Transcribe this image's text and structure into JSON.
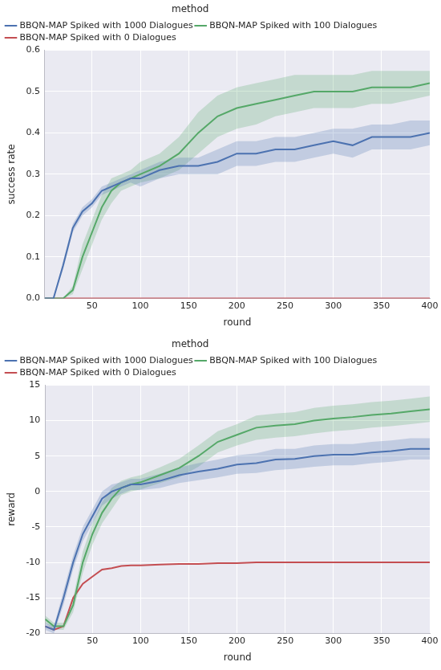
{
  "chart_data": [
    {
      "type": "line",
      "x_label": "round",
      "y_label": "success rate",
      "legend_title": "method",
      "legend": "top",
      "grid": true,
      "x": [
        1,
        10,
        20,
        30,
        40,
        50,
        60,
        70,
        80,
        90,
        100,
        120,
        140,
        160,
        180,
        200,
        220,
        240,
        260,
        280,
        300,
        320,
        340,
        360,
        380,
        400
      ],
      "xlim": [
        1,
        400
      ],
      "xticks": [
        50,
        100,
        150,
        200,
        250,
        300,
        350,
        400
      ],
      "ylim": [
        0,
        0.6
      ],
      "yticks": [
        {
          "value": 0,
          "label": "0.0"
        },
        0.1,
        0.2,
        0.3,
        0.4,
        0.5,
        0.6
      ],
      "series": [
        {
          "name": "BBQN-MAP Spiked with 1000 Dialogues",
          "color": "#4c72b0",
          "values": [
            0,
            0,
            0.08,
            0.17,
            0.21,
            0.23,
            0.26,
            0.27,
            0.28,
            0.29,
            0.29,
            0.31,
            0.32,
            0.32,
            0.33,
            0.35,
            0.35,
            0.36,
            0.36,
            0.37,
            0.38,
            0.37,
            0.39,
            0.39,
            0.39,
            0.4
          ],
          "lower": [
            0,
            0,
            0.07,
            0.16,
            0.2,
            0.22,
            0.25,
            0.26,
            0.27,
            0.28,
            0.27,
            0.29,
            0.3,
            0.3,
            0.3,
            0.32,
            0.32,
            0.33,
            0.33,
            0.34,
            0.35,
            0.34,
            0.36,
            0.36,
            0.36,
            0.37
          ],
          "upper": [
            0,
            0,
            0.09,
            0.18,
            0.22,
            0.24,
            0.27,
            0.28,
            0.29,
            0.3,
            0.31,
            0.33,
            0.34,
            0.34,
            0.36,
            0.38,
            0.38,
            0.39,
            0.39,
            0.4,
            0.41,
            0.41,
            0.42,
            0.42,
            0.43,
            0.43
          ]
        },
        {
          "name": "BBQN-MAP Spiked with 100 Dialogues",
          "color": "#55a868",
          "values": [
            0,
            0,
            0,
            0.02,
            0.1,
            0.16,
            0.22,
            0.26,
            0.28,
            0.29,
            0.3,
            0.32,
            0.35,
            0.4,
            0.44,
            0.46,
            0.47,
            0.48,
            0.49,
            0.5,
            0.5,
            0.5,
            0.51,
            0.51,
            0.51,
            0.52
          ],
          "lower": [
            0,
            0,
            0,
            0.01,
            0.07,
            0.13,
            0.19,
            0.23,
            0.26,
            0.27,
            0.28,
            0.29,
            0.31,
            0.35,
            0.39,
            0.41,
            0.42,
            0.44,
            0.45,
            0.46,
            0.46,
            0.46,
            0.47,
            0.47,
            0.48,
            0.49
          ],
          "upper": [
            0,
            0,
            0,
            0.03,
            0.13,
            0.19,
            0.25,
            0.29,
            0.3,
            0.31,
            0.33,
            0.35,
            0.39,
            0.45,
            0.49,
            0.51,
            0.52,
            0.53,
            0.54,
            0.54,
            0.54,
            0.54,
            0.55,
            0.55,
            0.55,
            0.55
          ]
        },
        {
          "name": "BBQN-MAP Spiked with 0 Dialogues",
          "color": "#c44e52",
          "values": [
            0,
            0,
            0,
            0,
            0,
            0,
            0,
            0,
            0,
            0,
            0,
            0,
            0,
            0,
            0,
            0,
            0,
            0,
            0,
            0,
            0,
            0,
            0,
            0,
            0,
            0
          ]
        }
      ]
    },
    {
      "type": "line",
      "x_label": "round",
      "y_label": "reward",
      "legend_title": "method",
      "legend": "top",
      "grid": true,
      "x": [
        1,
        10,
        20,
        30,
        40,
        50,
        60,
        70,
        80,
        90,
        100,
        120,
        140,
        160,
        180,
        200,
        220,
        240,
        260,
        280,
        300,
        320,
        340,
        360,
        380,
        400
      ],
      "xlim": [
        1,
        400
      ],
      "xticks": [
        50,
        100,
        150,
        200,
        250,
        300,
        350,
        400
      ],
      "ylim": [
        -20,
        15
      ],
      "yticks": [
        -20,
        -15,
        -10,
        -5,
        0,
        5,
        10,
        15
      ],
      "series": [
        {
          "name": "BBQN-MAP Spiked with 1000 Dialogues",
          "color": "#4c72b0",
          "values": [
            -19,
            -19.5,
            -15,
            -10,
            -6,
            -3.5,
            -1,
            0,
            0.5,
            1,
            1,
            1.5,
            2.3,
            2.8,
            3.2,
            3.8,
            4,
            4.5,
            4.6,
            5,
            5.2,
            5.2,
            5.5,
            5.7,
            6,
            6
          ],
          "lower": [
            -19.5,
            -20,
            -16,
            -11,
            -7,
            -4.5,
            -2,
            -1,
            -0.3,
            0.2,
            0.2,
            0.5,
            1.2,
            1.6,
            2,
            2.5,
            2.6,
            3,
            3.2,
            3.5,
            3.7,
            3.7,
            4,
            4.2,
            4.5,
            4.5
          ],
          "upper": [
            -18.5,
            -19,
            -14,
            -9,
            -5,
            -2.5,
            0,
            1,
            1.3,
            1.8,
            1.8,
            2.5,
            3.4,
            4,
            4.5,
            5.1,
            5.4,
            6,
            6,
            6.5,
            6.7,
            6.7,
            7,
            7.2,
            7.5,
            7.5
          ]
        },
        {
          "name": "BBQN-MAP Spiked with 100 Dialogues",
          "color": "#55a868",
          "values": [
            -18,
            -19,
            -19,
            -16,
            -10,
            -6,
            -3,
            -1,
            0.5,
            1,
            1.3,
            2.3,
            3.3,
            5,
            7,
            8,
            9,
            9.3,
            9.5,
            10,
            10.3,
            10.5,
            10.8,
            11,
            11.3,
            11.6
          ],
          "lower": [
            -18.5,
            -19.5,
            -19.5,
            -17,
            -11.5,
            -7.5,
            -4.5,
            -2.5,
            -0.5,
            0,
            0.3,
            1.2,
            2,
            3.5,
            5.5,
            6.5,
            7.3,
            7.6,
            7.8,
            8.2,
            8.5,
            8.7,
            9,
            9.2,
            9.5,
            9.8
          ],
          "upper": [
            -17.5,
            -18.5,
            -18.5,
            -15,
            -8.5,
            -4.5,
            -1.5,
            0.5,
            1.5,
            2,
            2.3,
            3.4,
            4.6,
            6.5,
            8.5,
            9.5,
            10.7,
            11,
            11.2,
            11.8,
            12.1,
            12.3,
            12.6,
            12.8,
            13.1,
            13.4
          ]
        },
        {
          "name": "BBQN-MAP Spiked with 0 Dialogues",
          "color": "#c44e52",
          "values": [
            -19,
            -19.5,
            -19,
            -15,
            -13,
            -12,
            -11,
            -10.8,
            -10.5,
            -10.4,
            -10.4,
            -10.3,
            -10.2,
            -10.2,
            -10.1,
            -10.1,
            -10,
            -10,
            -10,
            -10,
            -10,
            -10,
            -10,
            -10,
            -10,
            -10
          ]
        }
      ]
    }
  ]
}
